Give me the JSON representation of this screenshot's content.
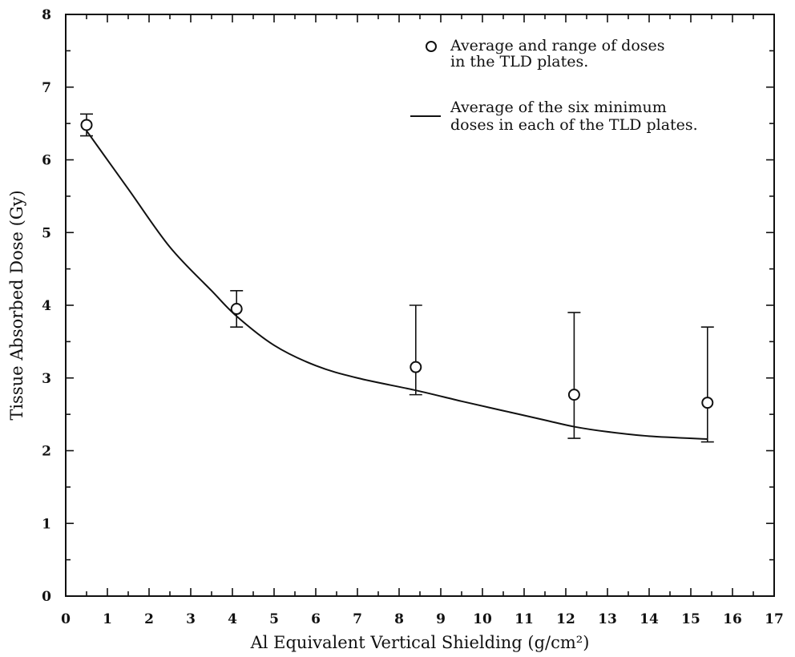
{
  "chart_data": {
    "type": "scatter",
    "xlabel": "Al Equivalent Vertical Shielding (g/cm²)",
    "ylabel": "Tissue Absorbed Dose (Gy)",
    "xlim": [
      0,
      17
    ],
    "ylim": [
      0,
      8
    ],
    "x_ticks": [
      "0",
      "1",
      "2",
      "3",
      "4",
      "5",
      "6",
      "7",
      "8",
      "9",
      "10",
      "11",
      "12",
      "13",
      "14",
      "15",
      "16",
      "17"
    ],
    "y_ticks": [
      "0",
      "1",
      "2",
      "3",
      "4",
      "5",
      "6",
      "7",
      "8"
    ],
    "grid": false,
    "legend_position": "top-right",
    "series": [
      {
        "name": "Average and range of doses in the TLD plates.",
        "marker": "open-circle",
        "points": [
          {
            "x": 0.5,
            "y": 6.48,
            "low": 6.33,
            "high": 6.63
          },
          {
            "x": 4.1,
            "y": 3.95,
            "low": 3.7,
            "high": 4.2
          },
          {
            "x": 8.4,
            "y": 3.15,
            "low": 2.77,
            "high": 4.0
          },
          {
            "x": 12.2,
            "y": 2.77,
            "low": 2.17,
            "high": 3.9
          },
          {
            "x": 15.4,
            "y": 2.66,
            "low": 2.12,
            "high": 3.7
          }
        ]
      },
      {
        "name": "Average of the six minimum doses in each of the TLD plates.",
        "marker": "line",
        "x": [
          0.5,
          1.5,
          2.5,
          3.5,
          4.1,
          5.0,
          6.0,
          7.0,
          8.4,
          9.5,
          10.5,
          11.5,
          12.2,
          13.0,
          14.0,
          15.4
        ],
        "y": [
          6.4,
          5.6,
          4.8,
          4.2,
          3.85,
          3.45,
          3.17,
          3.0,
          2.83,
          2.68,
          2.55,
          2.42,
          2.33,
          2.26,
          2.2,
          2.16
        ]
      }
    ],
    "legend": {
      "circle_lines": [
        "Average and range of doses",
        "in the TLD plates."
      ],
      "line_lines": [
        "Average of the six minimum",
        "doses in each of the TLD plates."
      ]
    }
  }
}
